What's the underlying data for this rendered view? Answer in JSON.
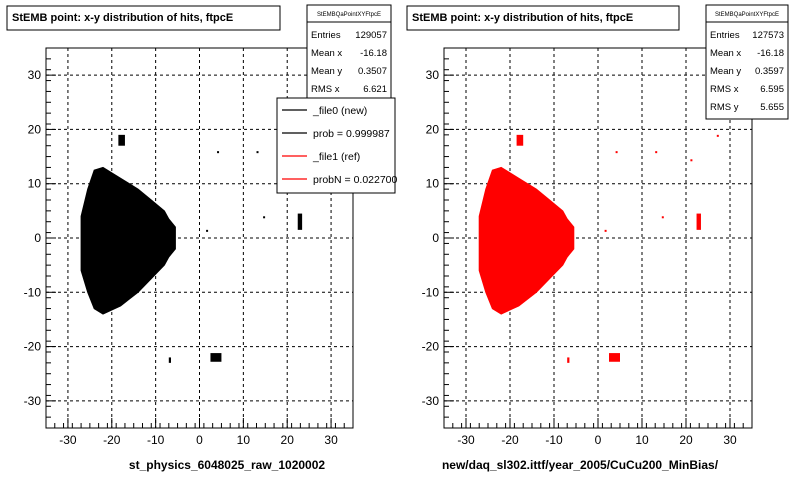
{
  "chart_data": [
    {
      "type": "scatter",
      "title": "StEMB point: x-y distribution of hits, ftpcE",
      "xlabel": "st_physics_6048025_raw_1020002",
      "ylabel": "",
      "xlim": [
        -35,
        35
      ],
      "ylim": [
        -35,
        35
      ],
      "xticks": [
        -30,
        -20,
        -10,
        0,
        10,
        20,
        30
      ],
      "yticks": [
        30,
        20,
        10,
        0,
        -10,
        -20,
        -30
      ],
      "grid": true,
      "color": "#000000",
      "stats": {
        "name": "StEMBQaPointXYFtpcE",
        "rows": [
          {
            "label": "Entries",
            "value": "129057"
          },
          {
            "label": "Mean x",
            "value": "-16.18"
          },
          {
            "label": "Mean y",
            "value": "0.3507"
          },
          {
            "label": "RMS x",
            "value": "6.621"
          }
        ]
      },
      "legend": [
        {
          "label": "_file0 (new)",
          "color": "#000000"
        },
        {
          "label": "prob = 0.999987",
          "color": "#000000"
        },
        {
          "label": "_file1 (ref)",
          "color": "#ff0000"
        },
        {
          "label": "probN = 0.022700",
          "color": "#ff0000"
        }
      ],
      "clusters": [
        {
          "shape": "main",
          "x": [
            -27,
            -5.5
          ],
          "y": [
            -14,
            13
          ]
        },
        {
          "shape": "rect",
          "x": [
            22.4,
            23.4
          ],
          "y": [
            1.5,
            4.5
          ]
        },
        {
          "shape": "rect",
          "x": [
            -18.5,
            -17.0
          ],
          "y": [
            17,
            19
          ]
        },
        {
          "shape": "rect",
          "x": [
            2.5,
            5.0
          ],
          "y": [
            -22.8,
            -21.2
          ]
        },
        {
          "shape": "rect",
          "x": [
            -7.0,
            -6.5
          ],
          "y": [
            -23.0,
            -22.0
          ]
        }
      ]
    },
    {
      "type": "scatter",
      "title": "StEMB point: x-y distribution of hits, ftpcE",
      "xlabel": "new/daq_sl302.ittf/year_2005/CuCu200_MinBias/",
      "ylabel": "",
      "xlim": [
        -35,
        35
      ],
      "ylim": [
        -35,
        35
      ],
      "xticks": [
        -30,
        -20,
        -10,
        0,
        10,
        20,
        30
      ],
      "yticks": [
        30,
        20,
        10,
        0,
        -10,
        -20,
        -30
      ],
      "grid": true,
      "color": "#ff0000",
      "stats": {
        "name": "StEMBQaPointXYFtpcE",
        "rows": [
          {
            "label": "Entries",
            "value": "127573"
          },
          {
            "label": "Mean x",
            "value": "-16.18"
          },
          {
            "label": "Mean y",
            "value": "0.3597"
          },
          {
            "label": "RMS x",
            "value": "6.595"
          },
          {
            "label": "RMS y",
            "value": "5.655"
          }
        ]
      },
      "legend": [],
      "clusters": [
        {
          "shape": "main",
          "x": [
            -27,
            -5.5
          ],
          "y": [
            -14,
            13
          ]
        },
        {
          "shape": "rect",
          "x": [
            22.4,
            23.4
          ],
          "y": [
            1.5,
            4.5
          ]
        },
        {
          "shape": "rect",
          "x": [
            -18.5,
            -17.0
          ],
          "y": [
            17,
            19
          ]
        },
        {
          "shape": "rect",
          "x": [
            2.5,
            5.0
          ],
          "y": [
            -22.8,
            -21.2
          ]
        },
        {
          "shape": "rect",
          "x": [
            -7.0,
            -6.5
          ],
          "y": [
            -23.0,
            -22.0
          ]
        }
      ]
    }
  ]
}
